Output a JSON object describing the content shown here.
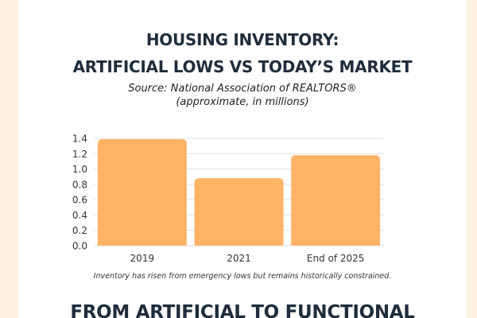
{
  "header": {
    "title_line1": "HOUSING INVENTORY:",
    "title_line2": "ARTIFICIAL LOWS VS TODAY’S MARKET",
    "source": "Source: National Association of REALTORS®",
    "units": "(approximate, in millions)"
  },
  "footnote": "Inventory has risen from emergency lows but remains historically constrained.",
  "next_section_title": "FROM ARTIFICIAL TO FUNCTIONAL",
  "colors": {
    "bar": "#ffb366",
    "title": "#1f2d3d",
    "background": "#fdf0df"
  },
  "chart_data": {
    "type": "bar",
    "categories": [
      "2019",
      "2021",
      "End of 2025"
    ],
    "values": [
      1.39,
      0.88,
      1.18
    ],
    "ylim": [
      0,
      1.4
    ],
    "yticks": [
      "0.0",
      "0.2",
      "0.4",
      "0.6",
      "0.8",
      "1.0",
      "1.2",
      "1.4"
    ],
    "grid": true,
    "xlabel": "",
    "ylabel": ""
  }
}
